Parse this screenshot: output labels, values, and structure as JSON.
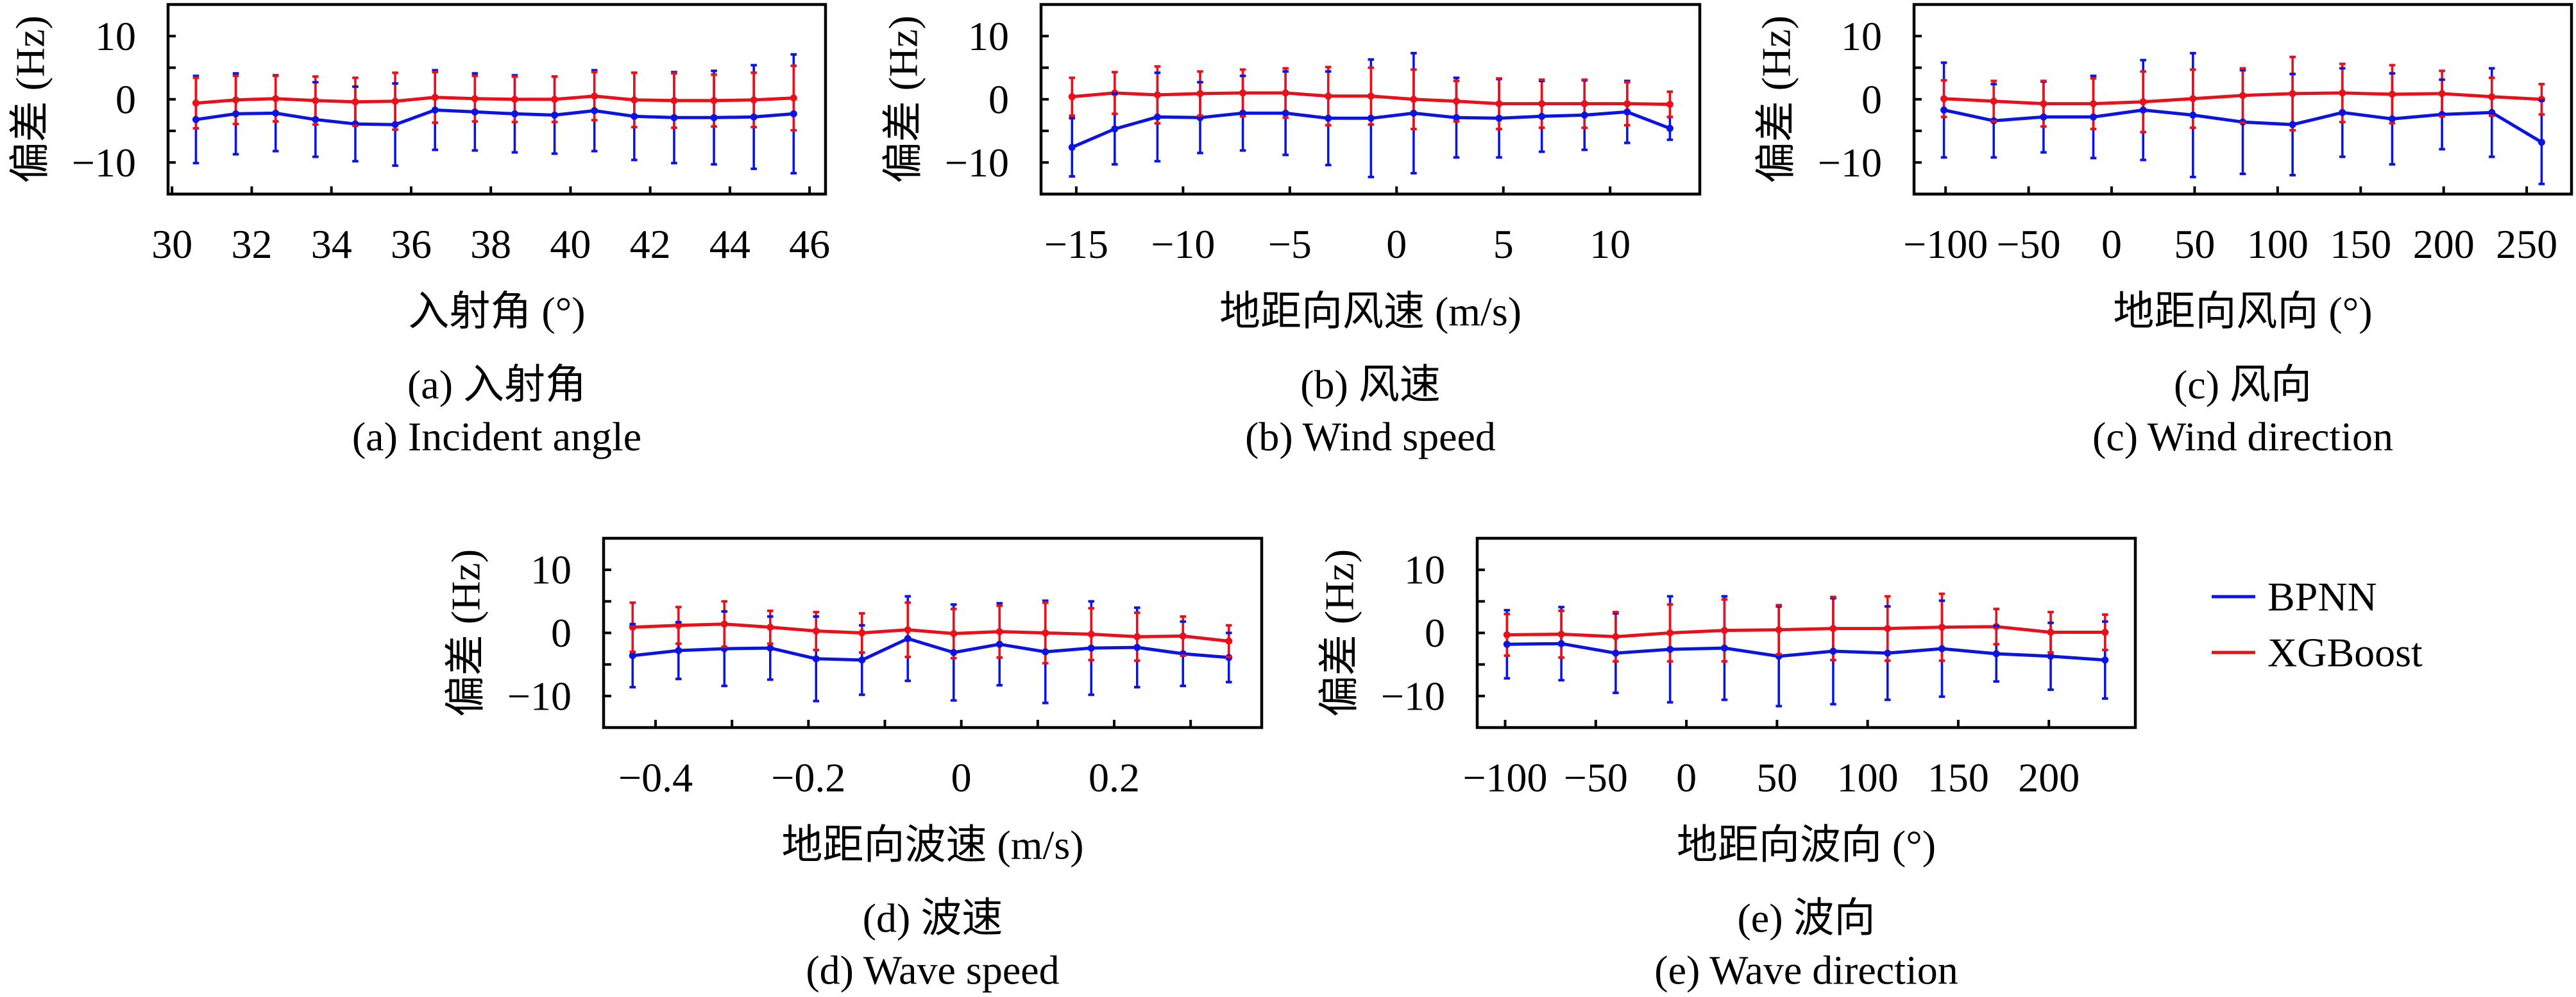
{
  "legend": {
    "position": "right",
    "entries": [
      {
        "label": "BPNN",
        "color": "#0b14e0"
      },
      {
        "label": "XGBoost",
        "color": "#e8101a"
      }
    ]
  },
  "chart_data": [
    {
      "panel": "a",
      "type": "line",
      "subtype": "errorbar",
      "caption_cn": "(a) 入射角",
      "caption_en": "(a) Incident angle",
      "xlabel": "入射角 (°)",
      "ylabel": "偏差 (Hz)",
      "xlim": [
        29.9,
        46.4
      ],
      "ylim": [
        -15,
        15
      ],
      "grid": false,
      "x_ticks": [
        30,
        32,
        34,
        36,
        38,
        40,
        42,
        44,
        46
      ],
      "x_tick_labels": [
        "30",
        "32",
        "34",
        "36",
        "38",
        "40",
        "42",
        "44",
        "46"
      ],
      "y_ticks": [
        -10,
        -5,
        0,
        5,
        10
      ],
      "y_tick_labels": [
        "−10",
        "",
        "0",
        "",
        "10"
      ],
      "x": [
        30.6,
        31.6,
        32.6,
        33.6,
        34.6,
        35.6,
        36.6,
        37.6,
        38.6,
        39.6,
        40.6,
        41.6,
        42.6,
        43.6,
        44.6,
        45.6
      ],
      "series": [
        {
          "name": "BPNN",
          "color": "#0b14e0",
          "y": [
            -3.2,
            -2.3,
            -2.2,
            -3.2,
            -3.9,
            -4.0,
            -1.7,
            -2.0,
            -2.3,
            -2.5,
            -1.8,
            -2.7,
            -2.9,
            -2.9,
            -2.8,
            -2.3
          ],
          "error": [
            6.9,
            6.4,
            6.0,
            5.9,
            5.9,
            6.5,
            6.3,
            6.1,
            6.1,
            6.1,
            6.4,
            6.9,
            7.2,
            7.4,
            8.2,
            9.4
          ]
        },
        {
          "name": "XGBoost",
          "color": "#e8101a",
          "y": [
            -0.6,
            -0.1,
            0.1,
            -0.2,
            -0.4,
            -0.3,
            0.3,
            0.1,
            0.0,
            0.0,
            0.5,
            -0.1,
            -0.2,
            -0.2,
            -0.1,
            0.2
          ],
          "error": [
            4.0,
            3.8,
            3.6,
            3.8,
            3.8,
            4.5,
            4.0,
            3.6,
            3.6,
            3.6,
            3.8,
            4.3,
            4.3,
            4.1,
            4.3,
            5.1
          ]
        }
      ]
    },
    {
      "panel": "b",
      "type": "line",
      "subtype": "errorbar",
      "caption_cn": "(b) 风速",
      "caption_en": "(b) Wind speed",
      "xlabel": "地距向风速 (m/s)",
      "ylabel": "偏差 (Hz)",
      "xlim": [
        -16.65,
        14.2
      ],
      "ylim": [
        -15,
        15
      ],
      "grid": false,
      "x_ticks": [
        -15,
        -10,
        -5,
        0,
        5,
        10
      ],
      "x_tick_labels": [
        "−15",
        "−10",
        "−5",
        "0",
        "5",
        "10"
      ],
      "y_ticks": [
        -10,
        -5,
        0,
        5,
        10
      ],
      "y_tick_labels": [
        "−10",
        "",
        "0",
        "",
        "10"
      ],
      "x": [
        -15.2,
        -13.2,
        -11.2,
        -9.2,
        -7.2,
        -5.2,
        -3.2,
        -1.2,
        0.8,
        2.8,
        4.8,
        6.8,
        8.8,
        10.8,
        12.8
      ],
      "series": [
        {
          "name": "BPNN",
          "color": "#0b14e0",
          "y": [
            -7.6,
            -4.7,
            -2.8,
            -2.9,
            -2.2,
            -2.2,
            -3.0,
            -3.0,
            -2.2,
            -2.9,
            -3.0,
            -2.7,
            -2.5,
            -2.0,
            -4.6
          ],
          "error": [
            4.6,
            5.6,
            7.0,
            5.6,
            5.9,
            6.6,
            7.4,
            9.3,
            9.5,
            6.3,
            6.2,
            5.6,
            5.5,
            4.9,
            1.8
          ]
        },
        {
          "name": "XGBoost",
          "color": "#e8101a",
          "y": [
            0.4,
            1.0,
            0.7,
            0.9,
            1.0,
            1.0,
            0.5,
            0.5,
            0.0,
            -0.3,
            -0.7,
            -0.7,
            -0.7,
            -0.7,
            -0.8
          ],
          "error": [
            3.0,
            3.3,
            4.5,
            3.5,
            3.7,
            3.9,
            4.6,
            4.5,
            4.7,
            3.2,
            4.0,
            3.8,
            3.8,
            3.4,
            2.0
          ]
        }
      ]
    },
    {
      "panel": "c",
      "type": "line",
      "subtype": "errorbar",
      "caption_cn": "(c) 风向",
      "caption_en": "(c) Wind direction",
      "xlabel": "地距向风向 (°)",
      "ylabel": "偏差 (Hz)",
      "xlim": [
        -119,
        277
      ],
      "ylim": [
        -15,
        15
      ],
      "grid": false,
      "x_ticks": [
        -100,
        -50,
        0,
        50,
        100,
        150,
        200,
        250
      ],
      "x_tick_labels": [
        "−100",
        "−50",
        "0",
        "50",
        "100",
        "150",
        "200",
        "250"
      ],
      "y_ticks": [
        -10,
        -5,
        0,
        5,
        10
      ],
      "y_tick_labels": [
        "−10",
        "",
        "0",
        "",
        "10"
      ],
      "x": [
        -101,
        -71,
        -41,
        -11,
        19,
        49,
        79,
        109,
        139,
        169,
        199,
        229,
        259
      ],
      "series": [
        {
          "name": "BPNN",
          "color": "#0b14e0",
          "y": [
            -1.7,
            -3.4,
            -2.8,
            -2.8,
            -1.7,
            -2.5,
            -3.6,
            -4.0,
            -2.1,
            -3.1,
            -2.4,
            -2.1,
            -6.8
          ],
          "error": [
            7.5,
            5.8,
            5.6,
            6.5,
            7.9,
            9.8,
            8.2,
            8.0,
            7.0,
            7.2,
            5.5,
            7.0,
            6.6
          ]
        },
        {
          "name": "XGBoost",
          "color": "#e8101a",
          "y": [
            0.1,
            -0.3,
            -0.7,
            -0.7,
            -0.4,
            0.1,
            0.6,
            0.9,
            1.0,
            0.8,
            0.9,
            0.4,
            0.0
          ],
          "error": [
            2.9,
            3.2,
            3.6,
            4.0,
            4.8,
            4.6,
            4.3,
            5.8,
            4.6,
            4.6,
            3.6,
            3.0,
            2.4
          ]
        }
      ]
    },
    {
      "panel": "d",
      "type": "line",
      "subtype": "errorbar",
      "caption_cn": "(d) 波速",
      "caption_en": "(d) Wave speed",
      "xlabel": "地距向波速 (m/s)",
      "ylabel": "偏差 (Hz)",
      "xlim": [
        -0.468,
        0.393
      ],
      "ylim": [
        -15,
        15
      ],
      "grid": false,
      "x_ticks": [
        -0.4,
        -0.3,
        -0.2,
        -0.1,
        0,
        0.1,
        0.2,
        0.3
      ],
      "x_tick_labels": [
        "−0.4",
        "",
        "−0.2",
        "",
        "0",
        "",
        "0.2",
        ""
      ],
      "y_ticks": [
        -10,
        -5,
        0,
        5,
        10
      ],
      "y_tick_labels": [
        "−10",
        "",
        "0",
        "",
        "10"
      ],
      "x": [
        -0.43,
        -0.37,
        -0.31,
        -0.25,
        -0.19,
        -0.13,
        -0.07,
        -0.01,
        0.05,
        0.11,
        0.17,
        0.23,
        0.29,
        0.35
      ],
      "series": [
        {
          "name": "BPNN",
          "color": "#0b14e0",
          "y": [
            -3.6,
            -2.8,
            -2.5,
            -2.4,
            -4.1,
            -4.3,
            -0.9,
            -3.1,
            -1.8,
            -3.0,
            -2.4,
            -2.3,
            -3.3,
            -3.9
          ],
          "error": [
            5.0,
            4.5,
            5.9,
            5.0,
            6.7,
            5.5,
            6.7,
            7.6,
            6.5,
            8.1,
            7.4,
            6.3,
            5.1,
            3.9
          ]
        },
        {
          "name": "XGBoost",
          "color": "#e8101a",
          "y": [
            0.9,
            1.2,
            1.4,
            0.9,
            0.3,
            0.0,
            0.5,
            -0.1,
            0.2,
            0.0,
            -0.2,
            -0.6,
            -0.5,
            -1.3
          ],
          "error": [
            3.9,
            2.9,
            3.6,
            2.6,
            3.0,
            3.1,
            4.3,
            3.9,
            4.1,
            4.8,
            4.1,
            3.8,
            3.1,
            2.5
          ]
        }
      ]
    },
    {
      "panel": "e",
      "type": "line",
      "subtype": "errorbar",
      "caption_cn": "(e) 波向",
      "caption_en": "(e) Wave direction",
      "xlabel": "地距向波向 (°)",
      "ylabel": "偏差 (Hz)",
      "xlim": [
        -115.4,
        247.7
      ],
      "ylim": [
        -15,
        15
      ],
      "grid": false,
      "x_ticks": [
        -100,
        -50,
        0,
        50,
        100,
        150,
        200
      ],
      "x_tick_labels": [
        "−100",
        "−50",
        "0",
        "50",
        "100",
        "150",
        "200"
      ],
      "y_ticks": [
        -10,
        -5,
        0,
        5,
        10
      ],
      "y_tick_labels": [
        "−10",
        "",
        "0",
        "",
        "10"
      ],
      "x": [
        -99,
        -69,
        -39,
        -9,
        21,
        51,
        81,
        111,
        141,
        171,
        201,
        231
      ],
      "series": [
        {
          "name": "BPNN",
          "color": "#0b14e0",
          "y": [
            -1.8,
            -1.7,
            -3.2,
            -2.6,
            -2.4,
            -3.7,
            -2.9,
            -3.2,
            -2.5,
            -3.3,
            -3.7,
            -4.3
          ],
          "error": [
            5.4,
            5.8,
            6.3,
            8.4,
            8.2,
            7.9,
            8.4,
            7.4,
            7.6,
            4.4,
            5.3,
            6.1
          ]
        },
        {
          "name": "XGBoost",
          "color": "#e8101a",
          "y": [
            -0.3,
            -0.2,
            -0.6,
            0.0,
            0.4,
            0.5,
            0.7,
            0.7,
            0.9,
            1.0,
            0.1,
            0.1
          ],
          "error": [
            3.3,
            3.7,
            3.9,
            4.5,
            4.9,
            3.9,
            5.0,
            5.1,
            5.3,
            2.8,
            3.2,
            2.8
          ]
        }
      ]
    }
  ]
}
